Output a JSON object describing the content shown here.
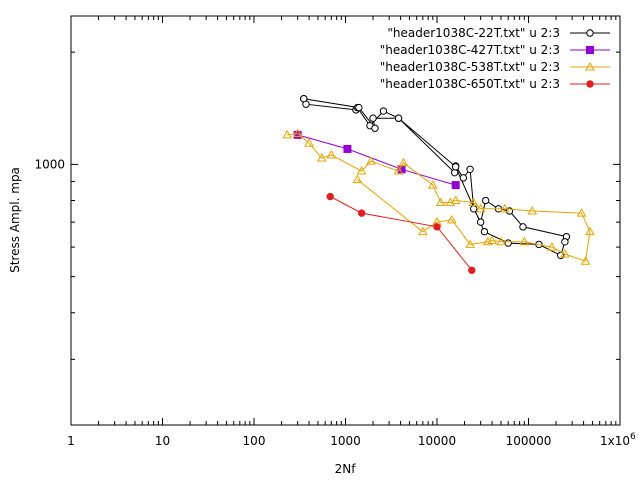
{
  "chart_data": {
    "type": "line",
    "title": "",
    "xlabel": "2Nf",
    "ylabel": "Stress Ampl. mpa",
    "x_scale": "log",
    "y_scale": "log",
    "xlim": [
      1,
      1000000
    ],
    "ylim": [
      200,
      2500
    ],
    "x_ticks": [
      {
        "value": 1,
        "label": "1"
      },
      {
        "value": 10,
        "label": "10"
      },
      {
        "value": 100,
        "label": "100"
      },
      {
        "value": 1000,
        "label": "1000"
      },
      {
        "value": 10000,
        "label": "10000"
      },
      {
        "value": 100000,
        "label": "100000"
      },
      {
        "value": 1000000,
        "label": "1x10^6"
      }
    ],
    "y_ticks": [
      {
        "value": 1000,
        "label": "1000"
      }
    ],
    "grid": false,
    "legend_position": "top-right",
    "series": [
      {
        "name": "\"header1038C-22T.txt\"  u 2:3",
        "color": "#000000",
        "marker": "circle-open",
        "points": [
          [
            350,
            1500
          ],
          [
            370,
            1450
          ],
          [
            1300,
            1400
          ],
          [
            1350,
            1420
          ],
          [
            1850,
            1270
          ],
          [
            2600,
            1390
          ],
          [
            3800,
            1330
          ],
          [
            15600,
            950
          ],
          [
            16000,
            990
          ],
          [
            19400,
            920
          ],
          [
            23000,
            970
          ],
          [
            25200,
            760
          ],
          [
            30000,
            700
          ],
          [
            34000,
            800
          ],
          [
            47000,
            760
          ],
          [
            62000,
            750
          ],
          [
            87000,
            680
          ],
          [
            260000,
            640
          ],
          [
            250000,
            620
          ],
          [
            225000,
            570
          ],
          [
            130000,
            610
          ],
          [
            60000,
            615
          ],
          [
            33000,
            660
          ],
          [
            16000,
            985
          ],
          [
            3800,
            1330
          ],
          [
            2000,
            1330
          ],
          [
            2100,
            1250
          ],
          [
            1400,
            1420
          ],
          [
            350,
            1500
          ]
        ]
      },
      {
        "name": "\"header1038C-427T.txt\"  u 2:3",
        "color": "#9400d3",
        "marker": "square-filled",
        "points": [
          [
            300,
            1200
          ],
          [
            1050,
            1100
          ],
          [
            4100,
            970
          ],
          [
            16000,
            880
          ]
        ]
      },
      {
        "name": "\"header1038C-538T.txt\"  u 2:3",
        "color": "#e6a400",
        "marker": "triangle-open",
        "points": [
          [
            230,
            1200
          ],
          [
            300,
            1210
          ],
          [
            400,
            1140
          ],
          [
            550,
            1040
          ],
          [
            700,
            1060
          ],
          [
            1500,
            960
          ],
          [
            1900,
            1020
          ],
          [
            3800,
            960
          ],
          [
            4300,
            1010
          ],
          [
            9000,
            880
          ],
          [
            11000,
            790
          ],
          [
            14000,
            790
          ],
          [
            16000,
            800
          ],
          [
            25000,
            790
          ],
          [
            30000,
            760
          ],
          [
            55000,
            760
          ],
          [
            110000,
            750
          ],
          [
            380000,
            740
          ],
          [
            470000,
            660
          ],
          [
            420000,
            550
          ],
          [
            250000,
            575
          ],
          [
            180000,
            600
          ],
          [
            90000,
            620
          ],
          [
            50000,
            620
          ],
          [
            40000,
            625
          ],
          [
            36000,
            620
          ],
          [
            23000,
            610
          ],
          [
            14500,
            710
          ],
          [
            10000,
            700
          ],
          [
            7000,
            660
          ],
          [
            1350,
            910
          ]
        ]
      },
      {
        "name": "\"header1038C-650T.txt\"  u 2:3",
        "color": "#e02020",
        "marker": "circle-filled",
        "points": [
          [
            680,
            820
          ],
          [
            1500,
            740
          ],
          [
            10000,
            680
          ],
          [
            24000,
            520
          ]
        ]
      }
    ]
  }
}
